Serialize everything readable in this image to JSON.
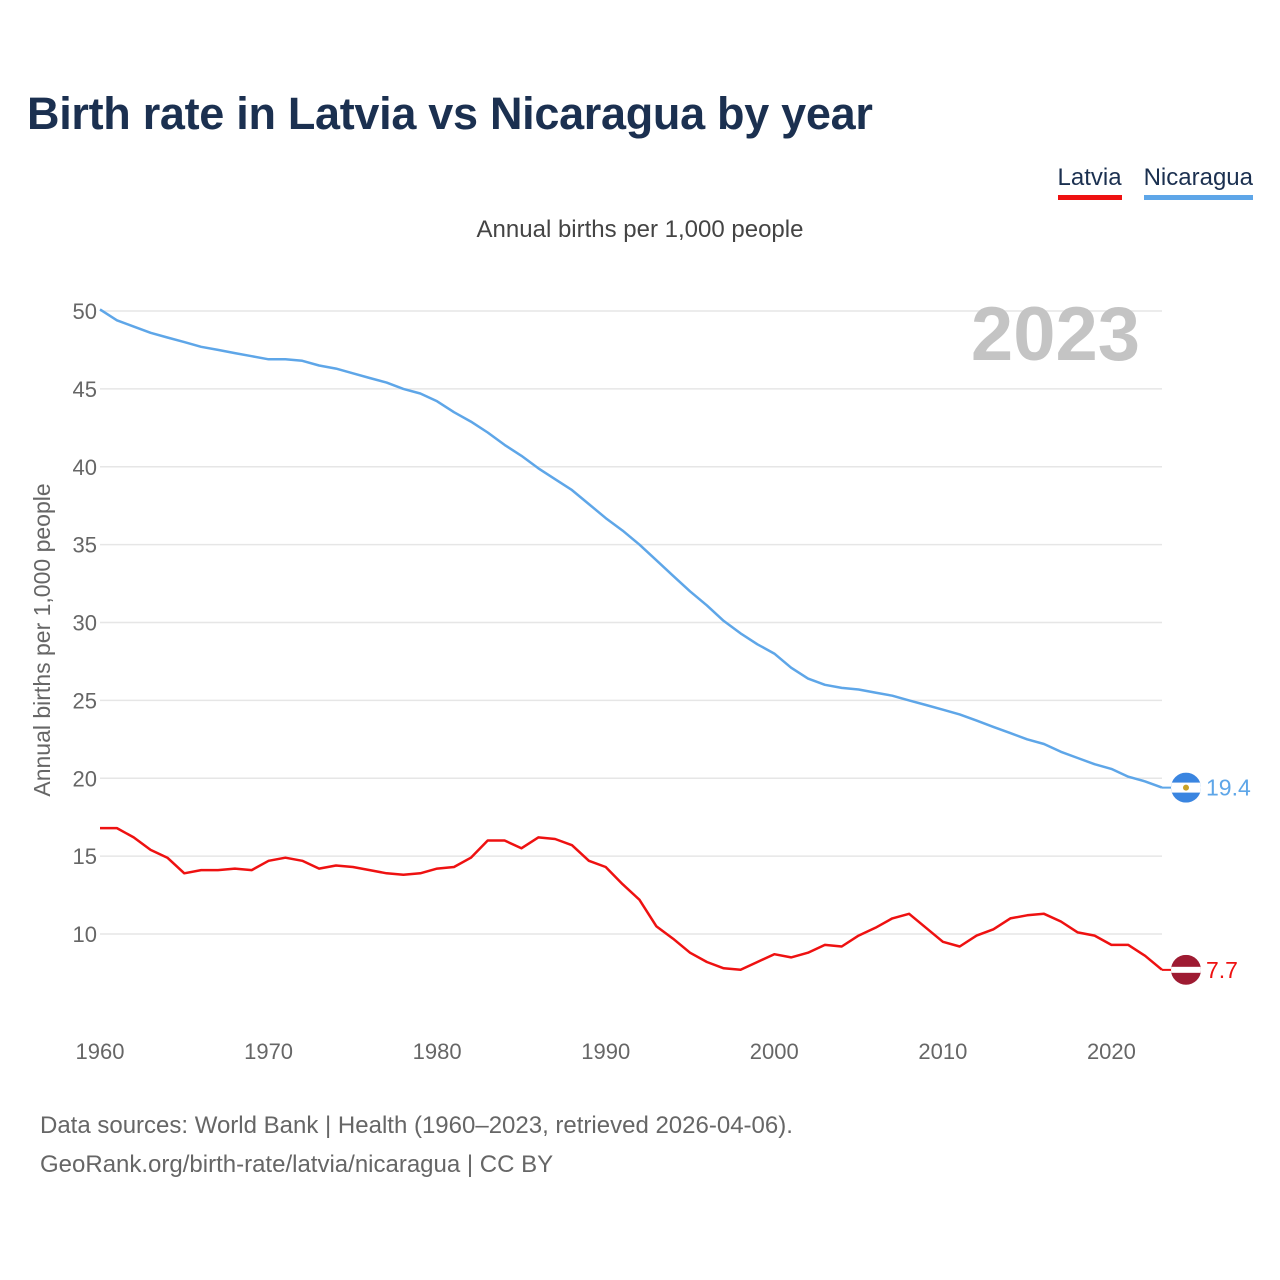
{
  "title": "Birth rate in Latvia vs Nicaragua by year",
  "subtitle": "Annual births per 1,000 people",
  "year_label": "2023",
  "legend": [
    {
      "name": "Latvia",
      "color": "#ee1111"
    },
    {
      "name": "Nicaragua",
      "color": "#5ea6e8"
    }
  ],
  "footer": {
    "line1": "Data sources: World Bank | Health (1960–2023, retrieved 2026-04-06).",
    "line2": "GeoRank.org/birth-rate/latvia/nicaragua | CC BY"
  },
  "chart_data": {
    "type": "line",
    "title": "Birth rate in Latvia vs Nicaragua by year",
    "ylabel": "Annual births per 1,000 people",
    "xlabel": "",
    "xlim": [
      1960,
      2023
    ],
    "ylim": [
      5,
      50
    ],
    "yticks": [
      10,
      15,
      20,
      25,
      30,
      35,
      40,
      45,
      50
    ],
    "xticks": [
      1960,
      1970,
      1980,
      1990,
      2000,
      2010,
      2020
    ],
    "x": [
      1960,
      1961,
      1962,
      1963,
      1964,
      1965,
      1966,
      1967,
      1968,
      1969,
      1970,
      1971,
      1972,
      1973,
      1974,
      1975,
      1976,
      1977,
      1978,
      1979,
      1980,
      1981,
      1982,
      1983,
      1984,
      1985,
      1986,
      1987,
      1988,
      1989,
      1990,
      1991,
      1992,
      1993,
      1994,
      1995,
      1996,
      1997,
      1998,
      1999,
      2000,
      2001,
      2002,
      2003,
      2004,
      2005,
      2006,
      2007,
      2008,
      2009,
      2010,
      2011,
      2012,
      2013,
      2014,
      2015,
      2016,
      2017,
      2018,
      2019,
      2020,
      2021,
      2022,
      2023
    ],
    "series": [
      {
        "name": "Nicaragua",
        "color": "#5ea6e8",
        "end_label": "19.4",
        "values": [
          50.1,
          49.4,
          49.0,
          48.6,
          48.3,
          48.0,
          47.7,
          47.5,
          47.3,
          47.1,
          46.9,
          46.9,
          46.8,
          46.5,
          46.3,
          46.0,
          45.7,
          45.4,
          45.0,
          44.7,
          44.2,
          43.5,
          42.9,
          42.2,
          41.4,
          40.7,
          39.9,
          39.2,
          38.5,
          37.6,
          36.7,
          35.9,
          35.0,
          34.0,
          33.0,
          32.0,
          31.1,
          30.1,
          29.3,
          28.6,
          28.0,
          27.1,
          26.4,
          26.0,
          25.8,
          25.7,
          25.5,
          25.3,
          25.0,
          24.7,
          24.4,
          24.1,
          23.7,
          23.3,
          22.9,
          22.5,
          22.2,
          21.7,
          21.3,
          20.9,
          20.6,
          20.1,
          19.8,
          19.4
        ]
      },
      {
        "name": "Latvia",
        "color": "#ee1111",
        "end_label": "7.7",
        "values": [
          16.8,
          16.8,
          16.2,
          15.4,
          14.9,
          13.9,
          14.1,
          14.1,
          14.2,
          14.1,
          14.7,
          14.9,
          14.7,
          14.2,
          14.4,
          14.3,
          14.1,
          13.9,
          13.8,
          13.9,
          14.2,
          14.3,
          14.9,
          16.0,
          16.0,
          15.5,
          16.2,
          16.1,
          15.7,
          14.7,
          14.3,
          13.2,
          12.2,
          10.5,
          9.7,
          8.8,
          8.2,
          7.8,
          7.7,
          8.2,
          8.7,
          8.5,
          8.8,
          9.3,
          9.2,
          9.9,
          10.4,
          11.0,
          11.3,
          10.4,
          9.5,
          9.2,
          9.9,
          10.3,
          11.0,
          11.2,
          11.3,
          10.8,
          10.1,
          9.9,
          9.3,
          9.3,
          8.6,
          7.7
        ]
      }
    ]
  }
}
